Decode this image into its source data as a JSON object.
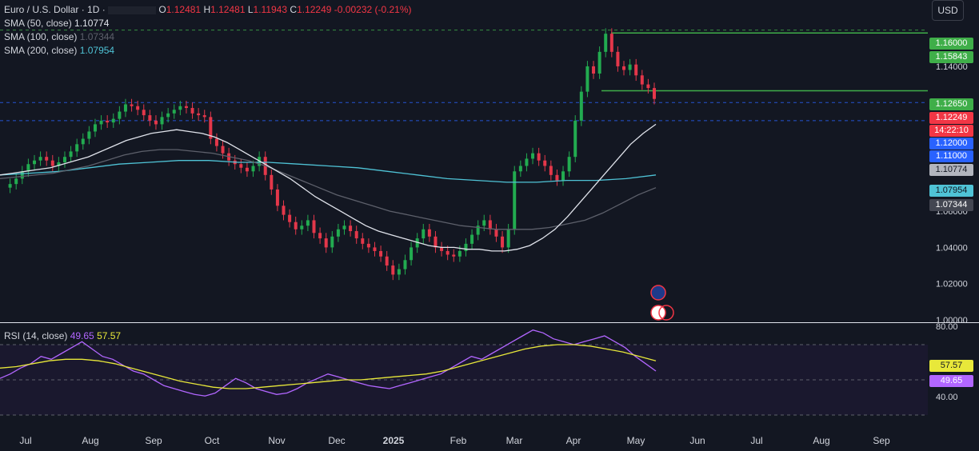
{
  "header": {
    "symbol": "Euro / U.S. Dollar · 1D · ",
    "open": "1.12481",
    "high": "1.12481",
    "low": "1.11943",
    "close": "1.12249",
    "change": "-0.00232 (-0.21%)",
    "o_label": "O",
    "h_label": "H",
    "l_label": "L",
    "c_label": "C"
  },
  "indicators": {
    "sma50": {
      "label": "SMA (50, close)",
      "value": "1.10774",
      "color": "#e0e3eb"
    },
    "sma100": {
      "label": "SMA (100, close)",
      "value": "1.07344",
      "color": "#5d606b"
    },
    "sma200": {
      "label": "SMA (200, close)",
      "value": "1.07954",
      "color": "#4fc3d6"
    }
  },
  "rsi": {
    "label": "RSI (14, close)",
    "value": "49.65",
    "ma_value": "57.57",
    "upper": "80.00",
    "lower": "40.00"
  },
  "currency_button": "USD",
  "price_axis": {
    "ticks": [
      "1.14000",
      "1.06000",
      "1.04000",
      "1.02000",
      "1.00000"
    ],
    "tags": [
      {
        "text": "1.16000",
        "bg": "#3fae49",
        "fg": "#ffffff"
      },
      {
        "text": "1.15843",
        "bg": "#3fae49",
        "fg": "#ffffff"
      },
      {
        "text": "1.12650",
        "bg": "#3fae49",
        "fg": "#ffffff"
      },
      {
        "text": "1.12249",
        "bg": "#f23645",
        "fg": "#ffffff"
      },
      {
        "text": "14:22:10",
        "bg": "#f23645",
        "fg": "#ffffff"
      },
      {
        "text": "1.12000",
        "bg": "#2962ff",
        "fg": "#ffffff"
      },
      {
        "text": "1.11000",
        "bg": "#2962ff",
        "fg": "#ffffff"
      },
      {
        "text": "1.10774",
        "bg": "#b2b5be",
        "fg": "#131722"
      },
      {
        "text": "1.07954",
        "bg": "#4fc3d6",
        "fg": "#131722"
      },
      {
        "text": "1.07344",
        "bg": "#434651",
        "fg": "#ffffff"
      }
    ]
  },
  "chart_data": {
    "type": "candlestick",
    "x_labels": [
      "Jul",
      "Aug",
      "Sep",
      "Oct",
      "Nov",
      "Dec",
      "2025",
      "Feb",
      "Mar",
      "Apr",
      "May",
      "Jun",
      "Jul",
      "Aug",
      "Sep"
    ],
    "ylim": [
      1.0,
      1.17
    ],
    "close_series": [
      1.073,
      1.075,
      1.078,
      1.082,
      1.086,
      1.088,
      1.09,
      1.088,
      1.085,
      1.087,
      1.09,
      1.093,
      1.097,
      1.1,
      1.104,
      1.108,
      1.11,
      1.109,
      1.111,
      1.115,
      1.119,
      1.118,
      1.116,
      1.113,
      1.11,
      1.108,
      1.112,
      1.114,
      1.116,
      1.118,
      1.117,
      1.114,
      1.113,
      1.112,
      1.1,
      1.096,
      1.092,
      1.088,
      1.086,
      1.084,
      1.082,
      1.085,
      1.09,
      1.08,
      1.072,
      1.063,
      1.058,
      1.054,
      1.05,
      1.052,
      1.055,
      1.048,
      1.045,
      1.04,
      1.046,
      1.05,
      1.052,
      1.049,
      1.045,
      1.042,
      1.04,
      1.038,
      1.035,
      1.03,
      1.025,
      1.028,
      1.033,
      1.04,
      1.045,
      1.05,
      1.046,
      1.04,
      1.038,
      1.036,
      1.035,
      1.038,
      1.042,
      1.047,
      1.052,
      1.055,
      1.05,
      1.046,
      1.04,
      1.05,
      1.082,
      1.085,
      1.089,
      1.092,
      1.088,
      1.085,
      1.08,
      1.077,
      1.082,
      1.09,
      1.11,
      1.126,
      1.14,
      1.136,
      1.148,
      1.158,
      1.148,
      1.14,
      1.138,
      1.141,
      1.135,
      1.13,
      1.128,
      1.122
    ],
    "sma50_series": [
      1.08,
      1.081,
      1.082,
      1.083,
      1.084,
      1.086,
      1.088,
      1.09,
      1.093,
      1.096,
      1.099,
      1.101,
      1.103,
      1.104,
      1.105,
      1.104,
      1.103,
      1.101,
      1.098,
      1.094,
      1.09,
      1.086,
      1.082,
      1.078,
      1.073,
      1.068,
      1.064,
      1.06,
      1.056,
      1.052,
      1.049,
      1.047,
      1.045,
      1.043,
      1.041,
      1.04,
      1.04,
      1.039,
      1.039,
      1.038,
      1.038,
      1.039,
      1.041,
      1.045,
      1.05,
      1.057,
      1.065,
      1.073,
      1.081,
      1.089,
      1.097,
      1.103,
      1.108
    ],
    "sma100_series": [
      1.078,
      1.079,
      1.08,
      1.081,
      1.083,
      1.085,
      1.088,
      1.091,
      1.093,
      1.094,
      1.094,
      1.093,
      1.092,
      1.09,
      1.088,
      1.085,
      1.081,
      1.077,
      1.073,
      1.069,
      1.066,
      1.063,
      1.06,
      1.058,
      1.056,
      1.054,
      1.052,
      1.051,
      1.05,
      1.05,
      1.05,
      1.051,
      1.053,
      1.055,
      1.059,
      1.064,
      1.069,
      1.073
    ],
    "sma200_series": [
      1.08,
      1.081,
      1.082,
      1.084,
      1.086,
      1.087,
      1.088,
      1.088,
      1.087,
      1.087,
      1.086,
      1.085,
      1.084,
      1.082,
      1.08,
      1.078,
      1.077,
      1.076,
      1.076,
      1.077,
      1.077,
      1.078,
      1.08
    ],
    "hlines": [
      1.15843,
      1.1265
    ],
    "dashed_lines": [
      1.16,
      1.12,
      1.11
    ],
    "rsi_series": [
      45,
      48,
      52,
      55,
      60,
      58,
      62,
      66,
      70,
      65,
      60,
      58,
      54,
      50,
      48,
      44,
      40,
      38,
      36,
      34,
      33,
      35,
      40,
      45,
      42,
      38,
      36,
      34,
      35,
      38,
      42,
      45,
      48,
      46,
      44,
      42,
      40,
      39,
      38,
      40,
      42,
      44,
      46,
      48,
      52,
      56,
      60,
      58,
      62,
      66,
      70,
      74,
      78,
      76,
      72,
      70,
      68,
      70,
      72,
      74,
      70,
      66,
      60,
      55,
      50
    ],
    "rsi_ma_series": [
      52,
      53,
      55,
      57,
      58,
      58,
      57,
      55,
      52,
      49,
      46,
      43,
      41,
      39,
      38,
      38,
      39,
      40,
      41,
      42,
      43,
      44,
      44,
      45,
      46,
      47,
      48,
      50,
      53,
      56,
      59,
      62,
      65,
      67,
      68,
      68,
      67,
      65,
      63,
      60,
      57
    ]
  }
}
